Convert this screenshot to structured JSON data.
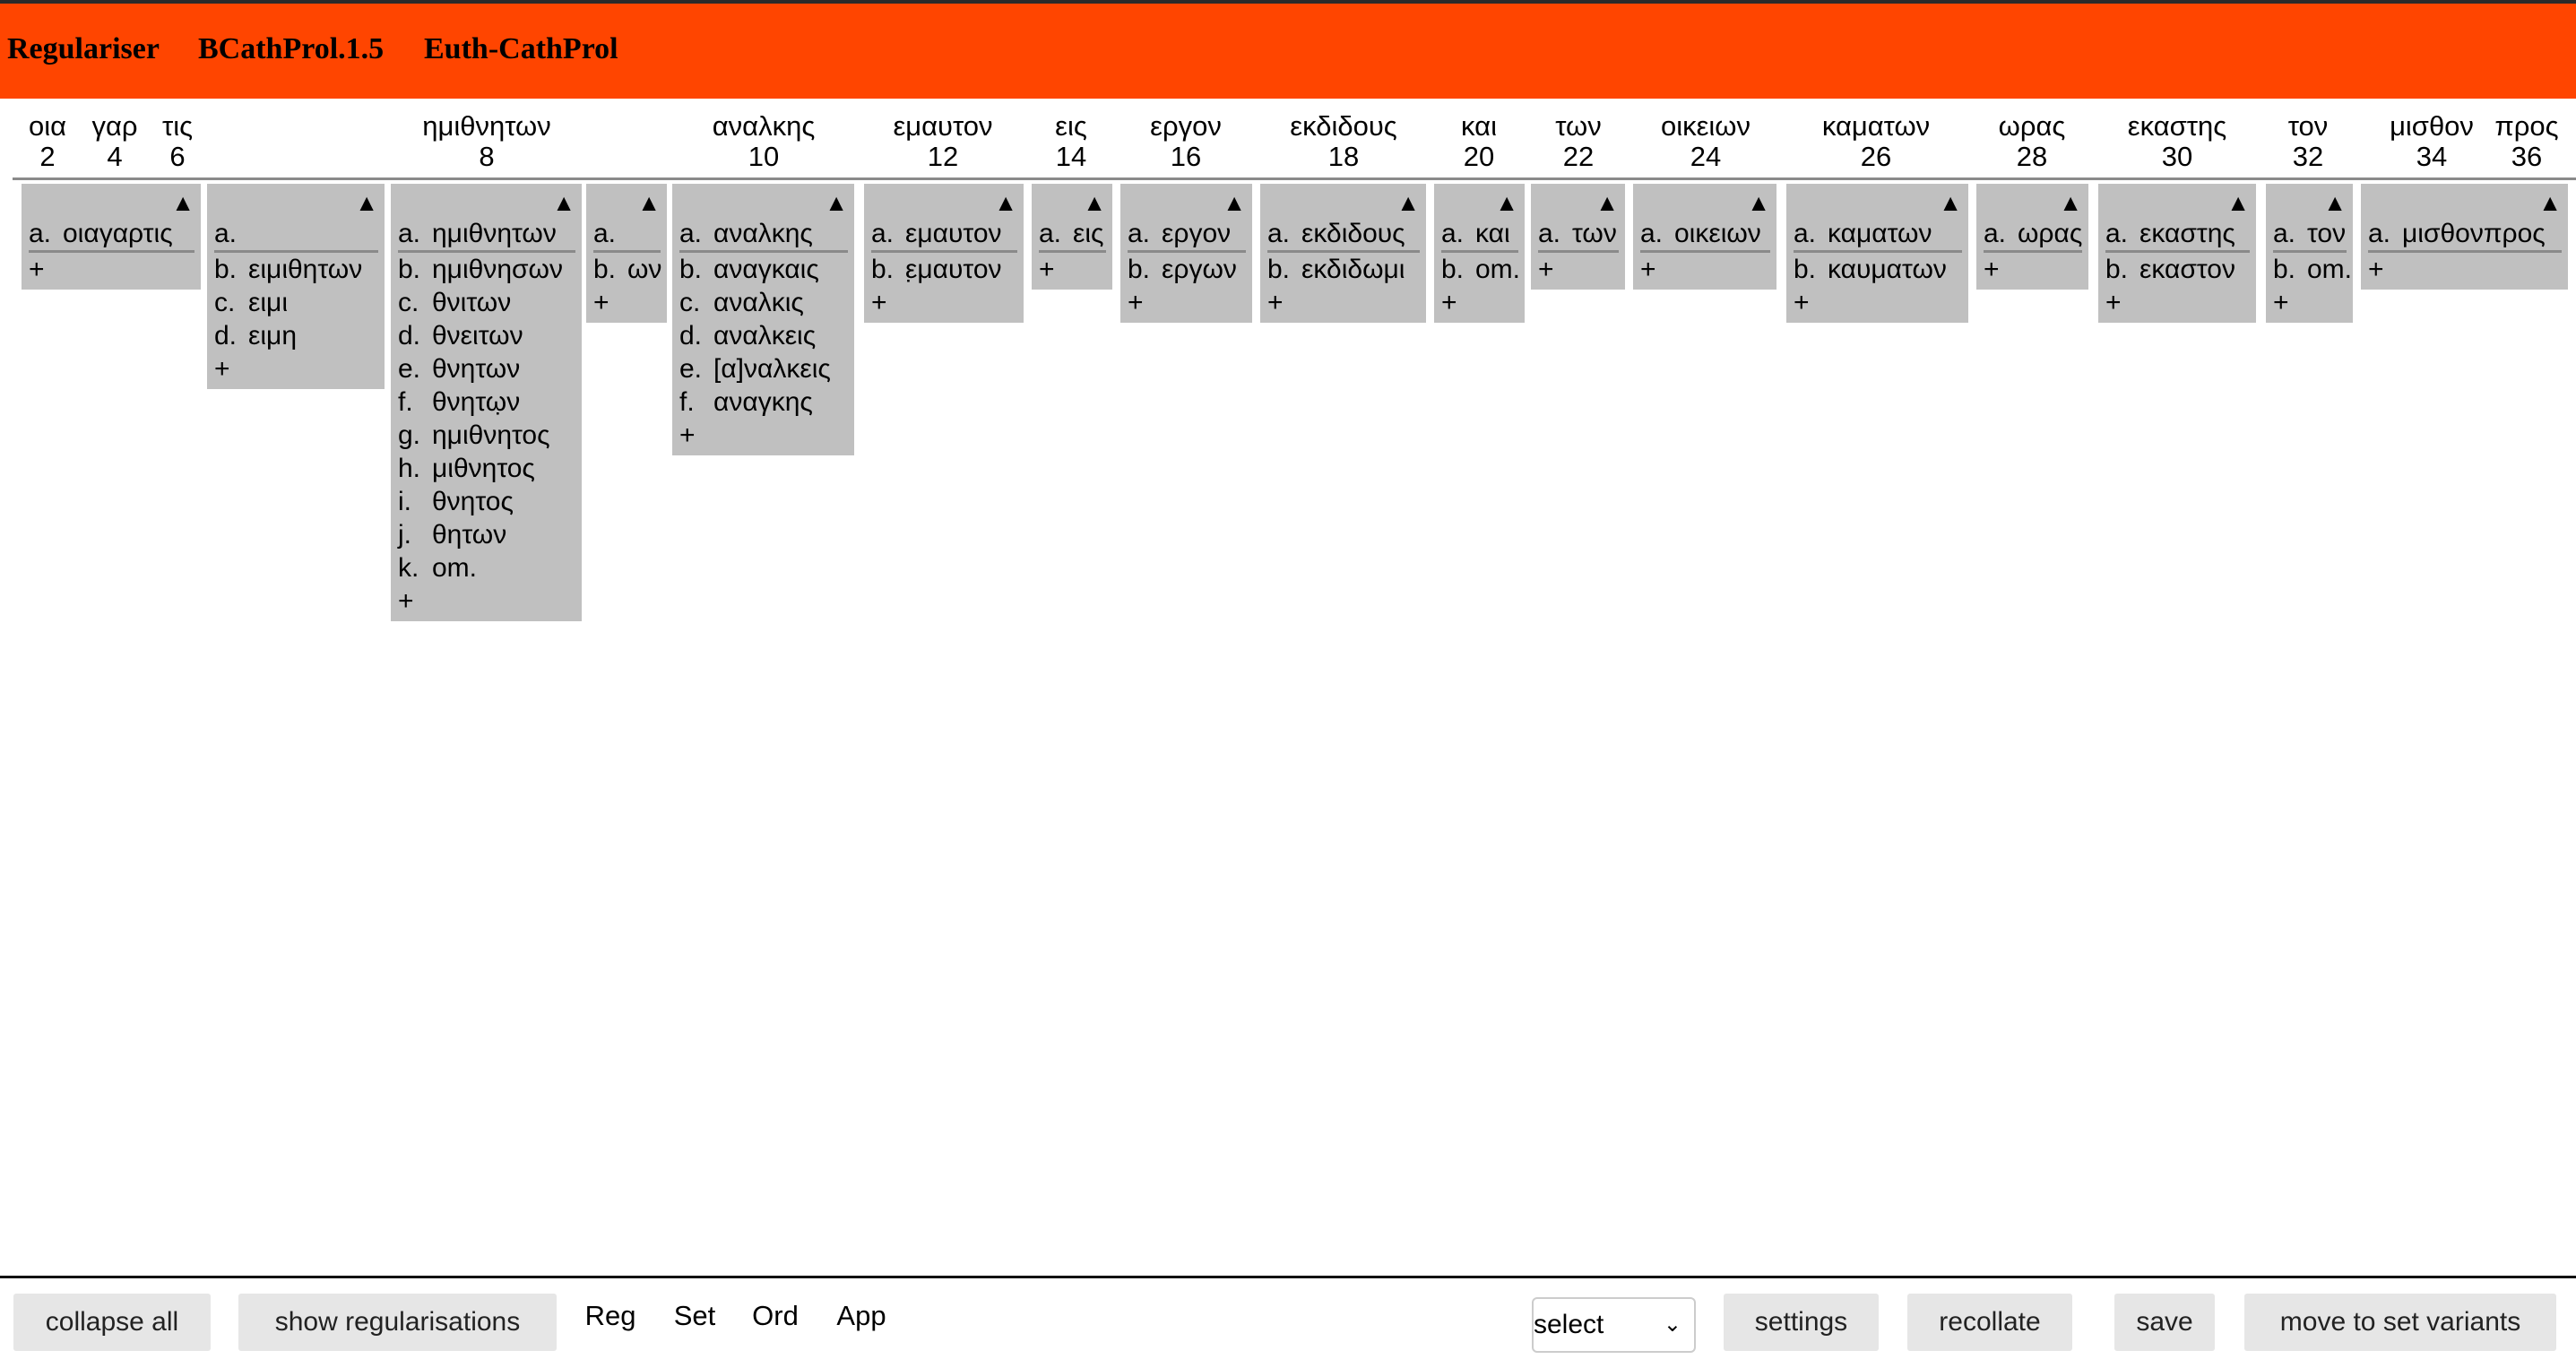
{
  "header": {
    "app": "Regulariser",
    "witness": "BCathProl.1.5",
    "project": "Euth-CathProl"
  },
  "columns": [
    {
      "word": "οια",
      "index": "2"
    },
    {
      "word": "γαρ",
      "index": "4"
    },
    {
      "word": "τις",
      "index": "6"
    },
    {
      "word": "ημιθνητων",
      "index": "8"
    },
    {
      "word": "αναλκης",
      "index": "10"
    },
    {
      "word": "εμαυτον",
      "index": "12"
    },
    {
      "word": "εις",
      "index": "14"
    },
    {
      "word": "εργον",
      "index": "16"
    },
    {
      "word": "εκδιδους",
      "index": "18"
    },
    {
      "word": "και",
      "index": "20"
    },
    {
      "word": "των",
      "index": "22"
    },
    {
      "word": "οικειων",
      "index": "24"
    },
    {
      "word": "καματων",
      "index": "26"
    },
    {
      "word": "ωρας",
      "index": "28"
    },
    {
      "word": "εκαστης",
      "index": "30"
    },
    {
      "word": "τον",
      "index": "32"
    },
    {
      "word": "μισθον",
      "index": "34"
    },
    {
      "word": "προς",
      "index": "36"
    }
  ],
  "units": [
    {
      "readings": [
        {
          "label": "a.",
          "text": "οιαγαρτις"
        }
      ]
    },
    {
      "readings": [
        {
          "label": "a.",
          "text": ""
        },
        {
          "label": "b.",
          "text": "ειμιθητων"
        },
        {
          "label": "c.",
          "text": "ειμι"
        },
        {
          "label": "d.",
          "text": "ειμη"
        }
      ]
    },
    {
      "readings": [
        {
          "label": "a.",
          "text": "ημιθνητων"
        },
        {
          "label": "b.",
          "text": "ημιθνησων"
        },
        {
          "label": "c.",
          "text": "θνιτων"
        },
        {
          "label": "d.",
          "text": "θνειτων"
        },
        {
          "label": "e.",
          "text": "θνητων"
        },
        {
          "label": "f.",
          "text": "θνητω̣ν"
        },
        {
          "label": "g.",
          "text": "ημιθνητος"
        },
        {
          "label": "h.",
          "text": "μιθνητος"
        },
        {
          "label": "i.",
          "text": "θνητος"
        },
        {
          "label": "j.",
          "text": "θητων"
        },
        {
          "label": "k.",
          "text": "om."
        }
      ]
    },
    {
      "readings": [
        {
          "label": "a.",
          "text": ""
        },
        {
          "label": "b.",
          "text": "ων"
        }
      ]
    },
    {
      "readings": [
        {
          "label": "a.",
          "text": "αναλκης"
        },
        {
          "label": "b.",
          "text": "αναγκαις"
        },
        {
          "label": "c.",
          "text": "αναλκις"
        },
        {
          "label": "d.",
          "text": "αναλκεις"
        },
        {
          "label": "e.",
          "text": "[α]ναλκεις"
        },
        {
          "label": "f.",
          "text": "αναγκης"
        }
      ]
    },
    {
      "readings": [
        {
          "label": "a.",
          "text": "εμαυτον"
        },
        {
          "label": "b.",
          "text": "ε̣μαυτον"
        }
      ]
    },
    {
      "readings": [
        {
          "label": "a.",
          "text": "εις"
        }
      ]
    },
    {
      "readings": [
        {
          "label": "a.",
          "text": "εργον"
        },
        {
          "label": "b.",
          "text": "εργων"
        }
      ]
    },
    {
      "readings": [
        {
          "label": "a.",
          "text": "εκδιδους"
        },
        {
          "label": "b.",
          "text": "εκδιδωμι"
        }
      ]
    },
    {
      "readings": [
        {
          "label": "a.",
          "text": "και"
        },
        {
          "label": "b.",
          "text": "om."
        }
      ]
    },
    {
      "readings": [
        {
          "label": "a.",
          "text": "των"
        }
      ]
    },
    {
      "readings": [
        {
          "label": "a.",
          "text": "οικειων"
        }
      ]
    },
    {
      "readings": [
        {
          "label": "a.",
          "text": "καματων"
        },
        {
          "label": "b.",
          "text": "καυματων"
        }
      ]
    },
    {
      "readings": [
        {
          "label": "a.",
          "text": "ωρας"
        }
      ]
    },
    {
      "readings": [
        {
          "label": "a.",
          "text": "εκαστης"
        },
        {
          "label": "b.",
          "text": "εκαστον"
        }
      ]
    },
    {
      "readings": [
        {
          "label": "a.",
          "text": "τον"
        },
        {
          "label": "b.",
          "text": "om."
        }
      ]
    },
    {
      "readings": [
        {
          "label": "a.",
          "text": "μισθονπρος"
        }
      ]
    }
  ],
  "unit_controls": {
    "collapse_icon": "triangle-up",
    "add_label": "+"
  },
  "footer": {
    "collapse_all": "collapse all",
    "show_regularisations": "show regularisations",
    "nav": [
      "Reg",
      "Set",
      "Ord",
      "App"
    ],
    "select_value": "select",
    "settings": "settings",
    "recollate": "recollate",
    "save": "save",
    "move": "move to set variants"
  },
  "colors": {
    "header_bg": "#ff4500",
    "unit_bg": "#c0c0c0",
    "button_bg": "#e6e6e6"
  }
}
